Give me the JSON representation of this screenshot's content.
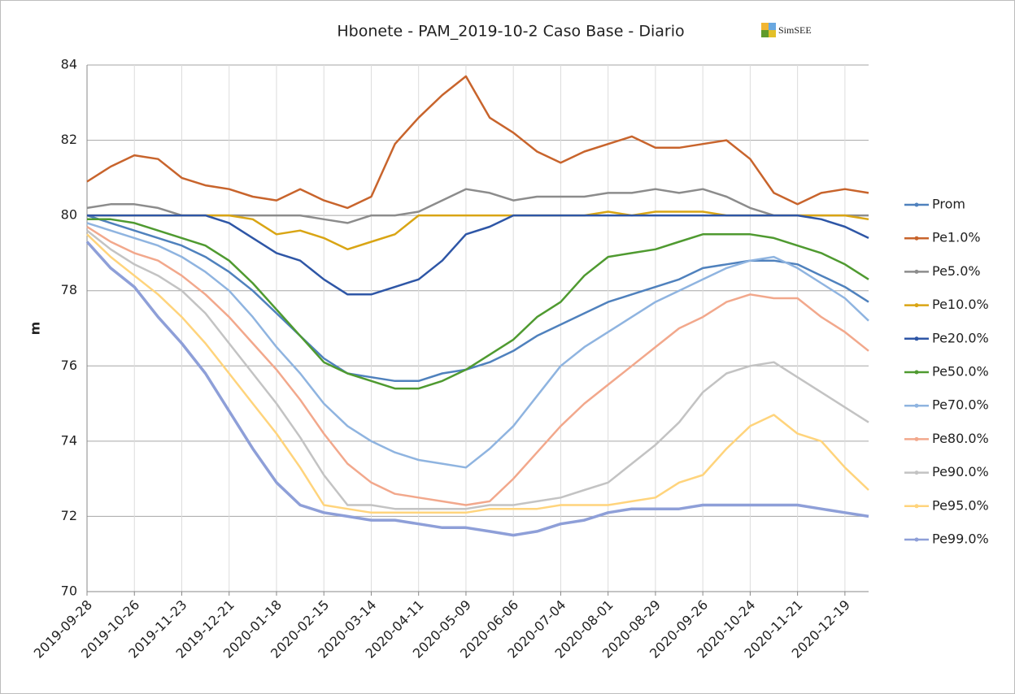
{
  "chart_data": {
    "type": "line",
    "title": "Hbonete - PAM_2019-10-2 Caso Base - Diario",
    "logo_text": "SimSEE",
    "y_label": "m",
    "grid": true,
    "legend": "right",
    "x": [
      "2019-09-28",
      "2019-10-12",
      "2019-10-26",
      "2019-11-09",
      "2019-11-23",
      "2019-12-07",
      "2019-12-21",
      "2020-01-04",
      "2020-01-18",
      "2020-02-01",
      "2020-02-15",
      "2020-02-29",
      "2020-03-14",
      "2020-03-28",
      "2020-04-11",
      "2020-04-25",
      "2020-05-09",
      "2020-05-23",
      "2020-06-06",
      "2020-06-20",
      "2020-07-04",
      "2020-07-18",
      "2020-08-01",
      "2020-08-15",
      "2020-08-29",
      "2020-09-12",
      "2020-09-26",
      "2020-10-10",
      "2020-10-24",
      "2020-11-07",
      "2020-11-21",
      "2020-12-05",
      "2020-12-19",
      "2021-01-02"
    ],
    "xlim": [
      "2019-09-28",
      "2021-01-02"
    ],
    "xticks": [
      "2019-09-28",
      "2019-10-26",
      "2019-11-23",
      "2019-12-21",
      "2020-01-18",
      "2020-02-15",
      "2020-03-14",
      "2020-04-11",
      "2020-05-09",
      "2020-06-06",
      "2020-07-04",
      "2020-08-01",
      "2020-08-29",
      "2020-09-26",
      "2020-10-24",
      "2020-11-21",
      "2020-12-19"
    ],
    "ylim": [
      70,
      84
    ],
    "yticks": [
      70,
      72,
      74,
      76,
      78,
      80,
      82,
      84
    ],
    "series": [
      {
        "name": "Prom",
        "color": "#4f81bd",
        "values": [
          80.0,
          79.8,
          79.6,
          79.4,
          79.2,
          78.9,
          78.5,
          78.0,
          77.4,
          76.8,
          76.2,
          75.8,
          75.7,
          75.6,
          75.6,
          75.8,
          75.9,
          76.1,
          76.4,
          76.8,
          77.1,
          77.4,
          77.7,
          77.9,
          78.1,
          78.3,
          78.6,
          78.7,
          78.8,
          78.8,
          78.7,
          78.4,
          78.1,
          77.7
        ]
      },
      {
        "name": "Pe1.0%",
        "color": "#c8642c",
        "values": [
          80.9,
          81.3,
          81.6,
          81.5,
          81.0,
          80.8,
          80.7,
          80.5,
          80.4,
          80.7,
          80.4,
          80.2,
          80.5,
          81.9,
          82.6,
          83.2,
          83.7,
          82.6,
          82.2,
          81.7,
          81.4,
          81.7,
          81.9,
          82.1,
          81.8,
          81.8,
          81.9,
          82.0,
          81.5,
          80.6,
          80.3,
          80.6,
          80.7,
          80.6
        ]
      },
      {
        "name": "Pe5.0%",
        "color": "#8c8c8c",
        "values": [
          80.2,
          80.3,
          80.3,
          80.2,
          80.0,
          80.0,
          80.0,
          80.0,
          80.0,
          80.0,
          79.9,
          79.8,
          80.0,
          80.0,
          80.1,
          80.4,
          80.7,
          80.6,
          80.4,
          80.5,
          80.5,
          80.5,
          80.6,
          80.6,
          80.7,
          80.6,
          80.7,
          80.5,
          80.2,
          80.0,
          80.0,
          80.0,
          80.0,
          80.0
        ]
      },
      {
        "name": "Pe10.0%",
        "color": "#d9a514",
        "values": [
          80.0,
          80.0,
          80.0,
          80.0,
          80.0,
          80.0,
          80.0,
          79.9,
          79.5,
          79.6,
          79.4,
          79.1,
          79.3,
          79.5,
          80.0,
          80.0,
          80.0,
          80.0,
          80.0,
          80.0,
          80.0,
          80.0,
          80.1,
          80.0,
          80.1,
          80.1,
          80.1,
          80.0,
          80.0,
          80.0,
          80.0,
          80.0,
          80.0,
          79.9
        ]
      },
      {
        "name": "Pe20.0%",
        "color": "#2e56a6",
        "values": [
          80.0,
          80.0,
          80.0,
          80.0,
          80.0,
          80.0,
          79.8,
          79.4,
          79.0,
          78.8,
          78.3,
          77.9,
          77.9,
          78.1,
          78.3,
          78.8,
          79.5,
          79.7,
          80.0,
          80.0,
          80.0,
          80.0,
          80.0,
          80.0,
          80.0,
          80.0,
          80.0,
          80.0,
          80.0,
          80.0,
          80.0,
          79.9,
          79.7,
          79.4
        ]
      },
      {
        "name": "Pe50.0%",
        "color": "#4f9a30",
        "values": [
          79.9,
          79.9,
          79.8,
          79.6,
          79.4,
          79.2,
          78.8,
          78.2,
          77.5,
          76.8,
          76.1,
          75.8,
          75.6,
          75.4,
          75.4,
          75.6,
          75.9,
          76.3,
          76.7,
          77.3,
          77.7,
          78.4,
          78.9,
          79.0,
          79.1,
          79.3,
          79.5,
          79.5,
          79.5,
          79.4,
          79.2,
          79.0,
          78.7,
          78.3
        ]
      },
      {
        "name": "Pe70.0%",
        "color": "#8fb4e0",
        "values": [
          79.8,
          79.6,
          79.4,
          79.2,
          78.9,
          78.5,
          78.0,
          77.3,
          76.5,
          75.8,
          75.0,
          74.4,
          74.0,
          73.7,
          73.5,
          73.4,
          73.3,
          73.8,
          74.4,
          75.2,
          76.0,
          76.5,
          76.9,
          77.3,
          77.7,
          78.0,
          78.3,
          78.6,
          78.8,
          78.9,
          78.6,
          78.2,
          77.8,
          77.2
        ]
      },
      {
        "name": "Pe80.0%",
        "color": "#f2a88c",
        "values": [
          79.7,
          79.3,
          79.0,
          78.8,
          78.4,
          77.9,
          77.3,
          76.6,
          75.9,
          75.1,
          74.2,
          73.4,
          72.9,
          72.6,
          72.5,
          72.4,
          72.3,
          72.4,
          73.0,
          73.7,
          74.4,
          75.0,
          75.5,
          76.0,
          76.5,
          77.0,
          77.3,
          77.7,
          77.9,
          77.8,
          77.8,
          77.3,
          76.9,
          76.4
        ]
      },
      {
        "name": "Pe90.0%",
        "color": "#c3c3c3",
        "values": [
          79.6,
          79.1,
          78.7,
          78.4,
          78.0,
          77.4,
          76.6,
          75.8,
          75.0,
          74.1,
          73.1,
          72.3,
          72.3,
          72.2,
          72.2,
          72.2,
          72.2,
          72.3,
          72.3,
          72.4,
          72.5,
          72.7,
          72.9,
          73.4,
          73.9,
          74.5,
          75.3,
          75.8,
          76.0,
          76.1,
          75.7,
          75.3,
          74.9,
          74.5
        ]
      },
      {
        "name": "Pe95.0%",
        "color": "#ffd47c",
        "values": [
          79.5,
          78.9,
          78.4,
          77.9,
          77.3,
          76.6,
          75.8,
          75.0,
          74.2,
          73.3,
          72.3,
          72.2,
          72.1,
          72.1,
          72.1,
          72.1,
          72.1,
          72.2,
          72.2,
          72.2,
          72.3,
          72.3,
          72.3,
          72.4,
          72.5,
          72.9,
          73.1,
          73.8,
          74.4,
          74.7,
          74.2,
          74.0,
          73.3,
          72.7
        ]
      },
      {
        "name": "Pe99.0%",
        "color": "#8e9fd8",
        "values": [
          79.3,
          78.6,
          78.1,
          77.3,
          76.6,
          75.8,
          74.8,
          73.8,
          72.9,
          72.3,
          72.1,
          72.0,
          71.9,
          71.9,
          71.8,
          71.7,
          71.7,
          71.6,
          71.5,
          71.6,
          71.8,
          71.9,
          72.1,
          72.2,
          72.2,
          72.2,
          72.3,
          72.3,
          72.3,
          72.3,
          72.3,
          72.2,
          72.1,
          72.0
        ]
      }
    ]
  }
}
